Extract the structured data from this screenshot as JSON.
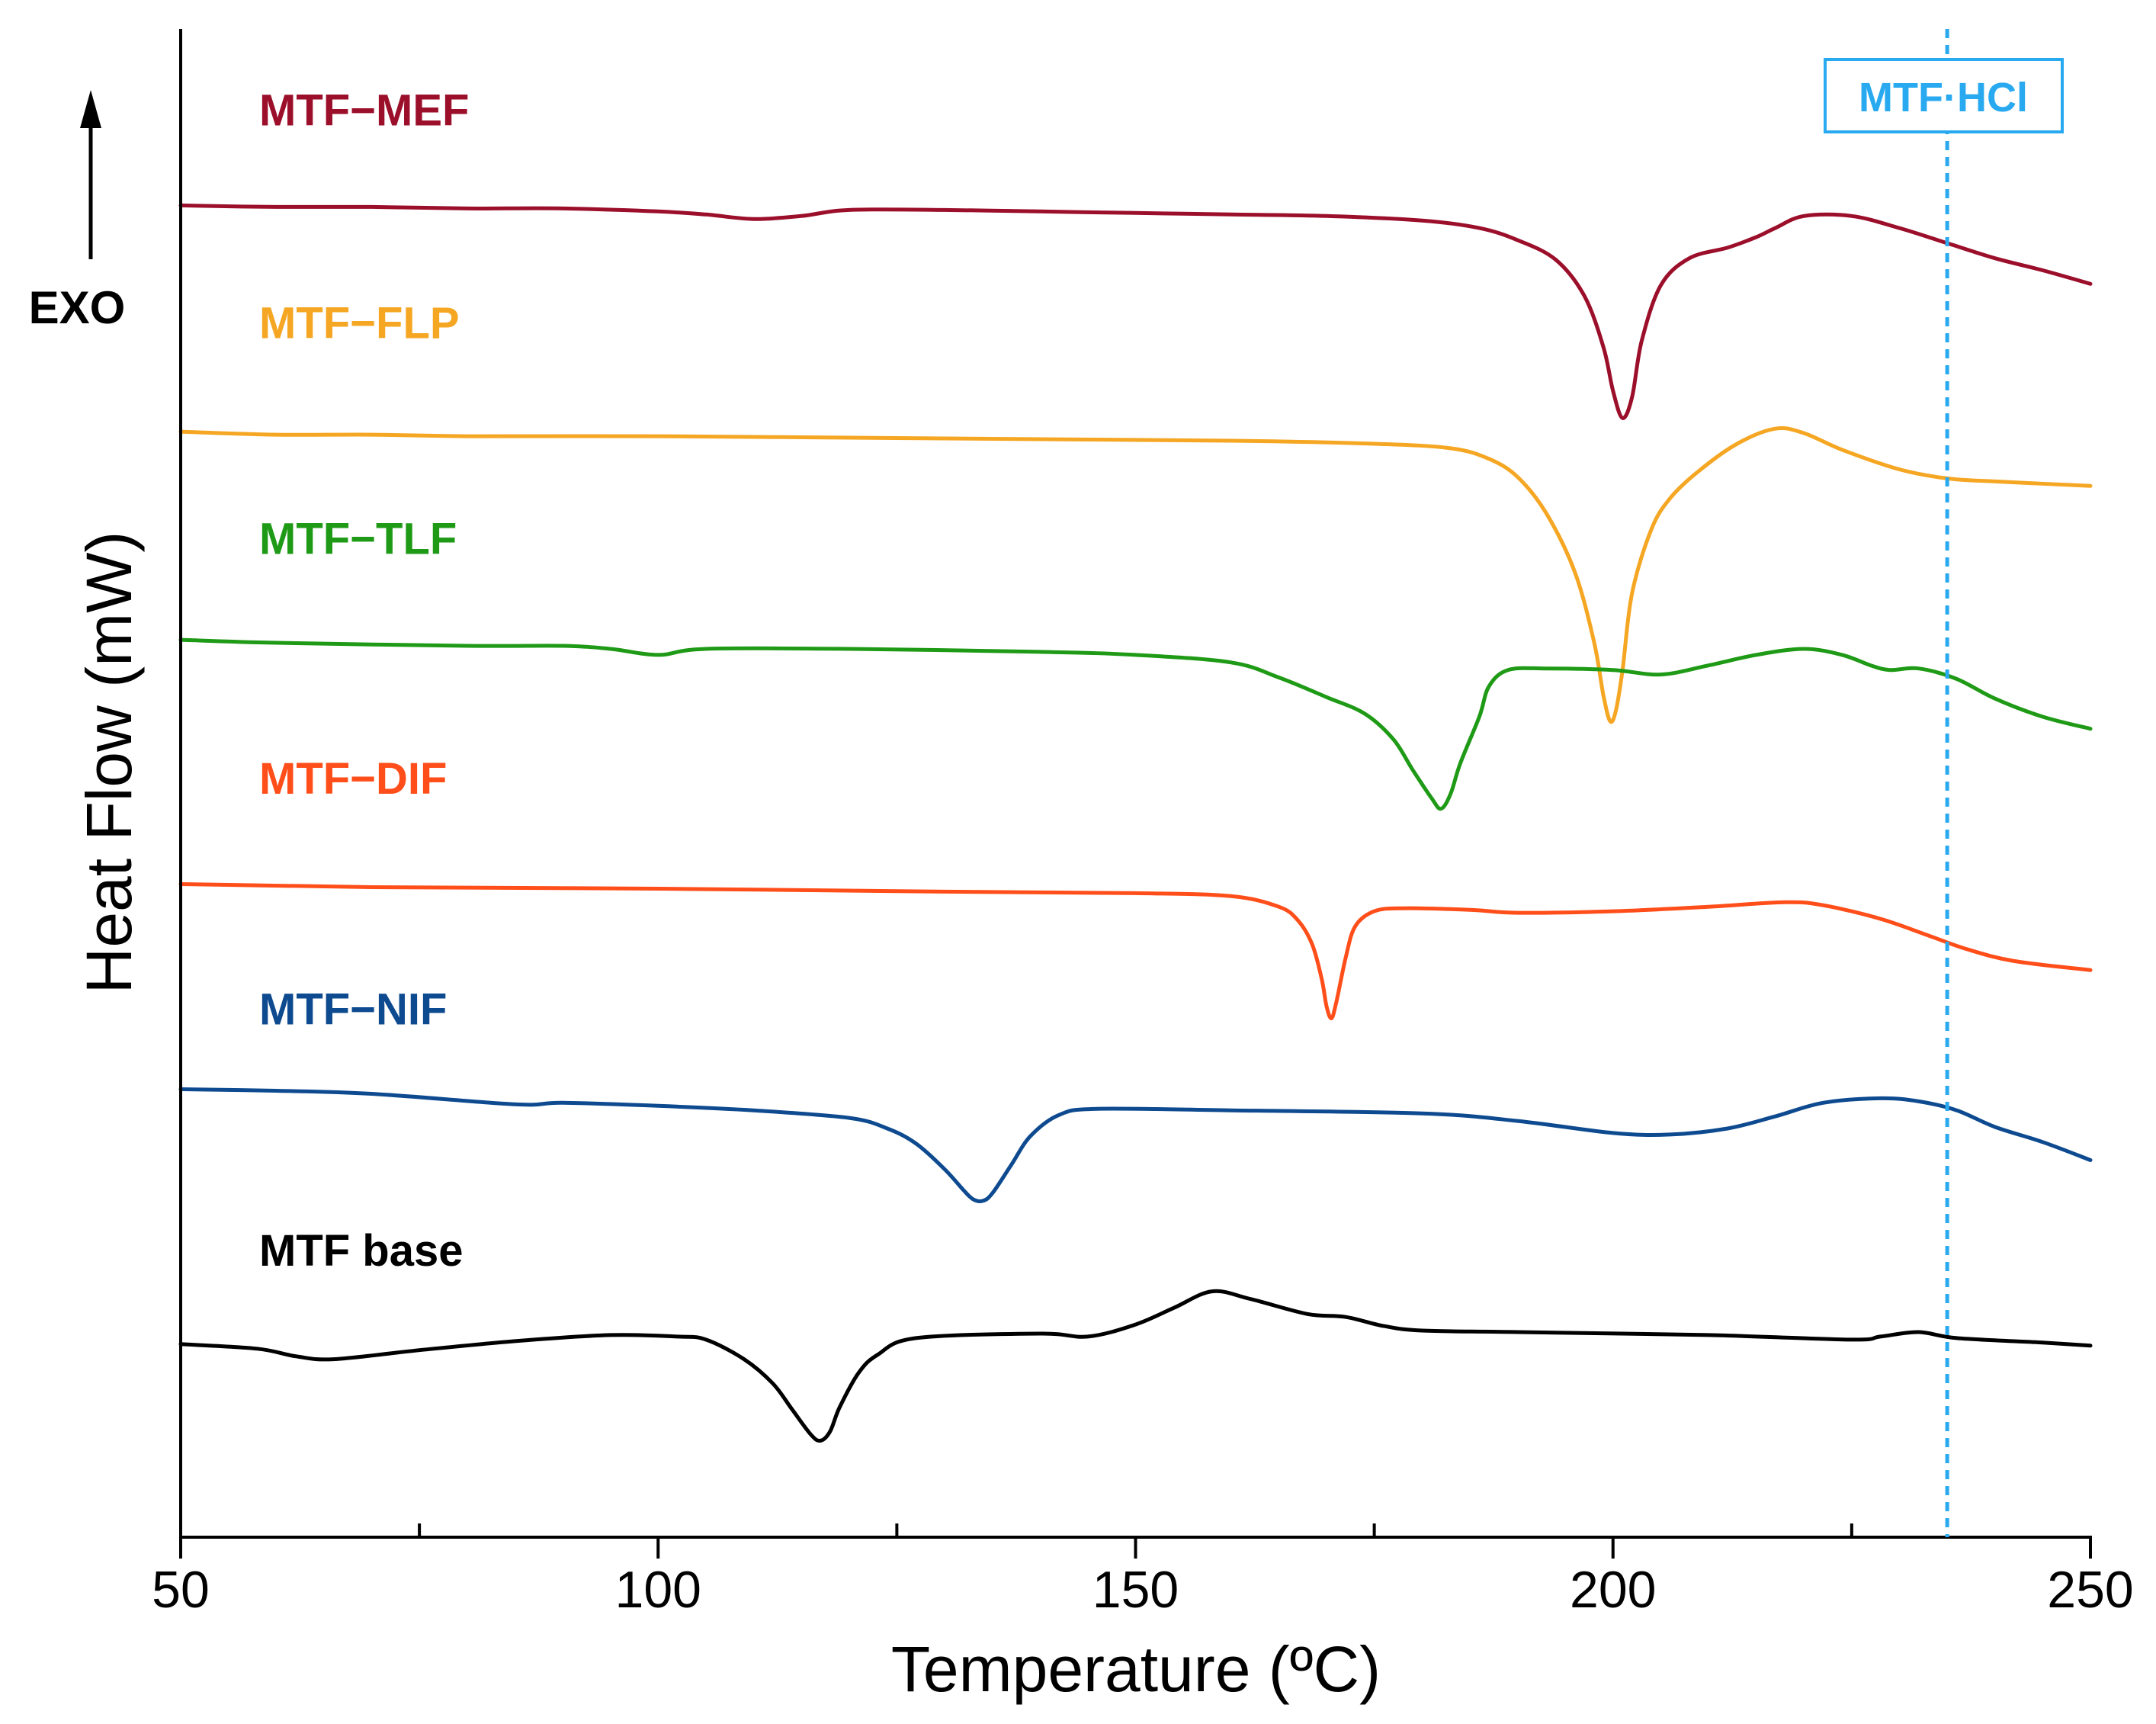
{
  "chart_data": {
    "type": "line",
    "title": "",
    "xlabel": "Temperature (ºC)",
    "ylabel": "Heat Flow (mW)",
    "xlim": [
      50,
      250
    ],
    "ylim": [
      0,
      1000
    ],
    "yticks_shown": false,
    "major_ticks": [
      50,
      100,
      150,
      200,
      250
    ],
    "minor_ticks": [
      75,
      125,
      175,
      225
    ],
    "exo_indicator": "EXO",
    "reference_line": {
      "x": 235,
      "label": "MTF·HCl",
      "color": "#29a9f0"
    },
    "series": [
      {
        "name": "MTF−MEF",
        "color": "#9b0f2b",
        "label_y": 936,
        "points": [
          [
            50,
            883
          ],
          [
            60,
            882
          ],
          [
            70,
            882
          ],
          [
            80,
            881
          ],
          [
            90,
            881
          ],
          [
            100,
            879
          ],
          [
            105,
            877
          ],
          [
            110,
            874
          ],
          [
            115,
            876
          ],
          [
            120,
            880
          ],
          [
            130,
            880
          ],
          [
            140,
            879
          ],
          [
            150,
            878
          ],
          [
            160,
            877
          ],
          [
            170,
            876
          ],
          [
            180,
            873
          ],
          [
            186,
            868
          ],
          [
            190,
            860
          ],
          [
            194,
            847
          ],
          [
            197,
            823
          ],
          [
            199,
            789
          ],
          [
            200,
            760
          ],
          [
            201,
            742
          ],
          [
            202,
            756
          ],
          [
            203,
            793
          ],
          [
            205,
            830
          ],
          [
            208,
            848
          ],
          [
            212,
            855
          ],
          [
            215,
            862
          ],
          [
            217,
            868
          ],
          [
            220,
            876
          ],
          [
            225,
            876
          ],
          [
            230,
            868
          ],
          [
            235,
            858
          ],
          [
            240,
            848
          ],
          [
            245,
            840
          ],
          [
            250,
            831
          ]
        ]
      },
      {
        "name": "MTF−FLP",
        "color": "#f5a623",
        "label_y": 795,
        "points": [
          [
            50,
            733
          ],
          [
            60,
            731
          ],
          [
            70,
            731
          ],
          [
            80,
            730
          ],
          [
            100,
            730
          ],
          [
            120,
            729
          ],
          [
            140,
            728
          ],
          [
            160,
            727
          ],
          [
            175,
            725
          ],
          [
            183,
            722
          ],
          [
            187,
            715
          ],
          [
            190,
            703
          ],
          [
            193,
            679
          ],
          [
            196,
            640
          ],
          [
            198,
            594
          ],
          [
            199,
            558
          ],
          [
            199.7,
            541
          ],
          [
            200.3,
            548
          ],
          [
            201,
            575
          ],
          [
            202,
            626
          ],
          [
            204,
            668
          ],
          [
            206,
            689
          ],
          [
            209,
            707
          ],
          [
            213,
            725
          ],
          [
            217,
            735
          ],
          [
            220,
            732
          ],
          [
            224,
            721
          ],
          [
            230,
            708
          ],
          [
            235,
            702
          ],
          [
            240,
            700
          ],
          [
            250,
            697
          ]
        ]
      },
      {
        "name": "MTF−TLF",
        "color": "#1f9a16",
        "label_y": 652,
        "points": [
          [
            50,
            595
          ],
          [
            60,
            593
          ],
          [
            80,
            591
          ],
          [
            90,
            591
          ],
          [
            95,
            589
          ],
          [
            100,
            585
          ],
          [
            105,
            589
          ],
          [
            120,
            589
          ],
          [
            140,
            587
          ],
          [
            150,
            585
          ],
          [
            160,
            580
          ],
          [
            165,
            570
          ],
          [
            170,
            557
          ],
          [
            174,
            546
          ],
          [
            177,
            529
          ],
          [
            179,
            509
          ],
          [
            181,
            490
          ],
          [
            182,
            483
          ],
          [
            183,
            493
          ],
          [
            184,
            513
          ],
          [
            186,
            544
          ],
          [
            187,
            564
          ],
          [
            189,
            575
          ],
          [
            193,
            576
          ],
          [
            200,
            575
          ],
          [
            205,
            572
          ],
          [
            210,
            578
          ],
          [
            215,
            585
          ],
          [
            220,
            589
          ],
          [
            224,
            585
          ],
          [
            227,
            578
          ],
          [
            229,
            575
          ],
          [
            232,
            576
          ],
          [
            236,
            569
          ],
          [
            240,
            556
          ],
          [
            245,
            544
          ],
          [
            250,
            536
          ]
        ]
      },
      {
        "name": "MTF−DIF",
        "color": "#ff4e1a",
        "label_y": 493,
        "points": [
          [
            50,
            433
          ],
          [
            70,
            431
          ],
          [
            100,
            430
          ],
          [
            130,
            428
          ],
          [
            150,
            427
          ],
          [
            160,
            425
          ],
          [
            165,
            418
          ],
          [
            167,
            409
          ],
          [
            168.5,
            393
          ],
          [
            169.5,
            370
          ],
          [
            170,
            352
          ],
          [
            170.5,
            344
          ],
          [
            171,
            354
          ],
          [
            172,
            384
          ],
          [
            173,
            405
          ],
          [
            175,
            415
          ],
          [
            178,
            417
          ],
          [
            185,
            416
          ],
          [
            190,
            414
          ],
          [
            200,
            415
          ],
          [
            210,
            418
          ],
          [
            218,
            421
          ],
          [
            222,
            419
          ],
          [
            228,
            410
          ],
          [
            233,
            399
          ],
          [
            237,
            390
          ],
          [
            242,
            382
          ],
          [
            250,
            376
          ]
        ]
      },
      {
        "name": "MTF−NIF",
        "color": "#0e4a8f",
        "label_y": 340,
        "points": [
          [
            50,
            297
          ],
          [
            60,
            296
          ],
          [
            70,
            294
          ],
          [
            85,
            287
          ],
          [
            90,
            288
          ],
          [
            100,
            286
          ],
          [
            110,
            283
          ],
          [
            120,
            278
          ],
          [
            124,
            271
          ],
          [
            127,
            261
          ],
          [
            130,
            244
          ],
          [
            132,
            230
          ],
          [
            133,
            224
          ],
          [
            134,
            223
          ],
          [
            135,
            228
          ],
          [
            137,
            247
          ],
          [
            139,
            266
          ],
          [
            142,
            280
          ],
          [
            146,
            284
          ],
          [
            160,
            283
          ],
          [
            180,
            281
          ],
          [
            190,
            276
          ],
          [
            200,
            268
          ],
          [
            206,
            267
          ],
          [
            212,
            271
          ],
          [
            217,
            279
          ],
          [
            222,
            288
          ],
          [
            228,
            291
          ],
          [
            232,
            289
          ],
          [
            236,
            283
          ],
          [
            240,
            272
          ],
          [
            245,
            262
          ],
          [
            250,
            250
          ]
        ]
      },
      {
        "name": "MTF base",
        "color": "#000000",
        "label_y": 180,
        "points": [
          [
            50,
            128
          ],
          [
            58,
            125
          ],
          [
            62,
            120
          ],
          [
            66,
            118
          ],
          [
            75,
            124
          ],
          [
            85,
            130
          ],
          [
            95,
            134
          ],
          [
            102,
            133
          ],
          [
            105,
            131
          ],
          [
            109,
            118
          ],
          [
            112,
            102
          ],
          [
            114,
            85
          ],
          [
            116,
            68
          ],
          [
            117,
            64
          ],
          [
            118,
            70
          ],
          [
            119,
            86
          ],
          [
            121,
            109
          ],
          [
            123,
            121
          ],
          [
            127,
            132
          ],
          [
            140,
            135
          ],
          [
            145,
            133
          ],
          [
            150,
            141
          ],
          [
            154,
            152
          ],
          [
            158,
            163
          ],
          [
            162,
            158
          ],
          [
            168,
            148
          ],
          [
            172,
            146
          ],
          [
            176,
            140
          ],
          [
            180,
            137
          ],
          [
            190,
            136
          ],
          [
            210,
            134
          ],
          [
            225,
            131
          ],
          [
            228,
            133
          ],
          [
            232,
            136
          ],
          [
            236,
            132
          ],
          [
            245,
            129
          ],
          [
            250,
            127
          ]
        ]
      }
    ]
  }
}
